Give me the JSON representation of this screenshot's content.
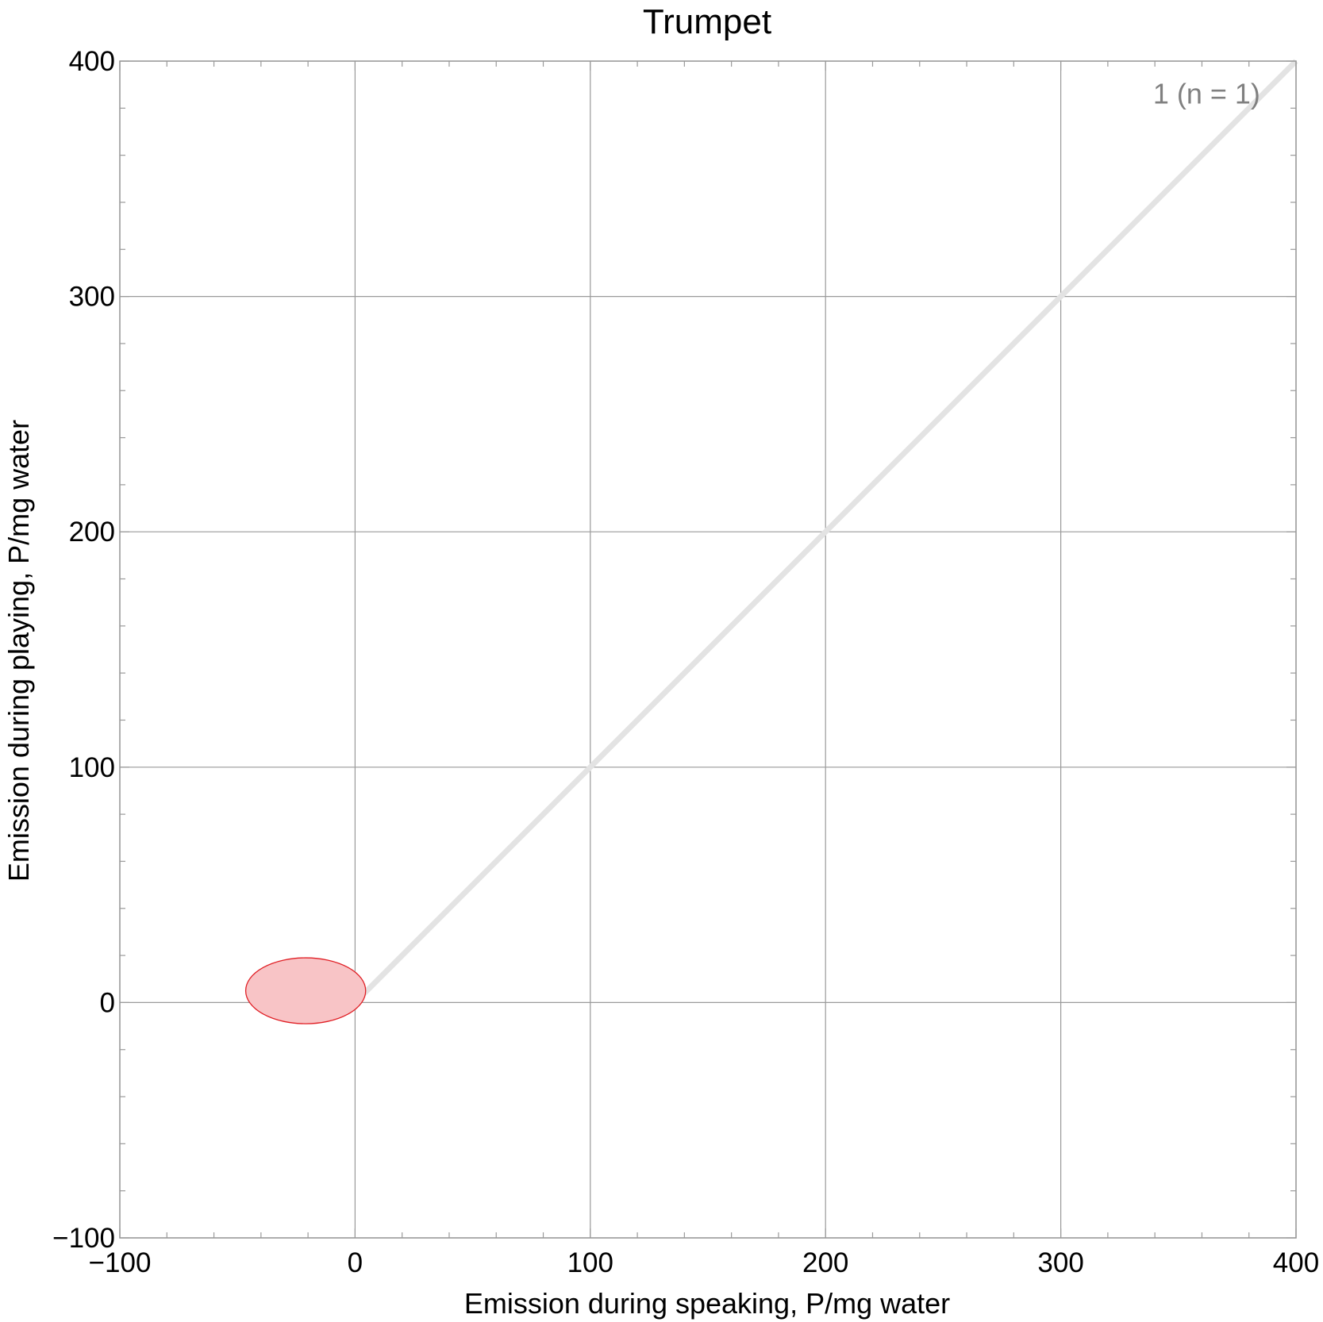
{
  "chart_data": {
    "type": "scatter",
    "title": "Trumpet",
    "xlabel": "Emission during speaking,   P/mg water",
    "ylabel": "Emission during playing,   P/mg water",
    "xlim": [
      -100,
      400
    ],
    "ylim": [
      -100,
      400
    ],
    "x_ticks": [
      -100,
      0,
      100,
      200,
      300,
      400
    ],
    "y_ticks": [
      -100,
      0,
      100,
      200,
      300,
      400
    ],
    "x_tick_labels": [
      "−100",
      "0",
      "100",
      "200",
      "300",
      "400"
    ],
    "y_tick_labels": [
      "−100",
      "0",
      "100",
      "200",
      "300",
      "400"
    ],
    "minor_tick_step": 20,
    "grid": true,
    "reference_line": {
      "from": [
        0,
        0
      ],
      "to": [
        400,
        400
      ],
      "color": "#e3e3e3"
    },
    "series": [
      {
        "x": [
          -21
        ],
        "y": [
          5
        ],
        "x_extent": [
          -47,
          4
        ],
        "y_extent": [
          -9,
          19
        ],
        "color": "#e01f25",
        "fill": "#f8c4c6"
      }
    ],
    "annotations": [
      {
        "text": "1  (n = 1)",
        "x": 362,
        "y": 382,
        "color": "#808080"
      }
    ]
  }
}
